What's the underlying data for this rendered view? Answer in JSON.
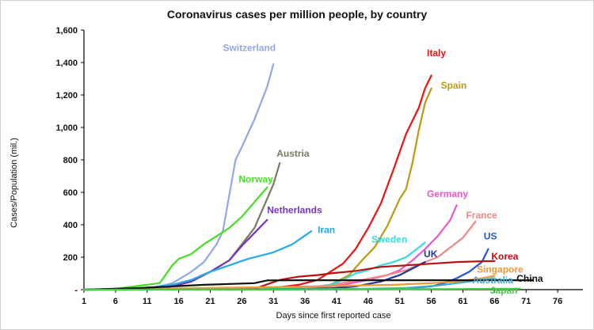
{
  "chart_data": {
    "type": "line",
    "title": "Coronavirus cases per million people, by country",
    "xlabel": "Days since first reported case",
    "ylabel": "Cases/Population (mil.)",
    "xlim": [
      1,
      80
    ],
    "ylim": [
      0,
      1600
    ],
    "x_ticks": [
      1,
      6,
      11,
      16,
      21,
      26,
      31,
      36,
      41,
      46,
      51,
      56,
      61,
      66,
      71,
      76
    ],
    "y_ticks": [
      0,
      200,
      400,
      600,
      800,
      1000,
      1200,
      1400,
      1600
    ],
    "y_tick_labels": [
      "-",
      "200",
      "400",
      "600",
      "800",
      "1,000",
      "1,200",
      "1,400",
      "1,600"
    ],
    "grid": false,
    "legend": "inline labels",
    "series": [
      {
        "name": "Switzerland",
        "color": "#8fa8ec",
        "points": [
          [
            1,
            0
          ],
          [
            5,
            3
          ],
          [
            9,
            8
          ],
          [
            12,
            12
          ],
          [
            15,
            40
          ],
          [
            18,
            110
          ],
          [
            20,
            170
          ],
          [
            22,
            280
          ],
          [
            23,
            360
          ],
          [
            25,
            800
          ],
          [
            26,
            880
          ],
          [
            28,
            1050
          ],
          [
            30,
            1250
          ],
          [
            31,
            1390
          ]
        ]
      },
      {
        "name": "Austria",
        "color": "#7a7a62",
        "points": [
          [
            1,
            0
          ],
          [
            8,
            5
          ],
          [
            12,
            10
          ],
          [
            15,
            30
          ],
          [
            18,
            60
          ],
          [
            21,
            110
          ],
          [
            24,
            180
          ],
          [
            26,
            280
          ],
          [
            28,
            380
          ],
          [
            30,
            560
          ],
          [
            31,
            650
          ],
          [
            32,
            780
          ]
        ]
      },
      {
        "name": "Norway",
        "color": "#44dd22",
        "points": [
          [
            1,
            0
          ],
          [
            6,
            5
          ],
          [
            9,
            20
          ],
          [
            13,
            40
          ],
          [
            15,
            150
          ],
          [
            16,
            190
          ],
          [
            18,
            220
          ],
          [
            20,
            280
          ],
          [
            22,
            330
          ],
          [
            24,
            380
          ],
          [
            26,
            450
          ],
          [
            28,
            540
          ],
          [
            30,
            630
          ]
        ]
      },
      {
        "name": "Netherlands",
        "color": "#7733bb",
        "points": [
          [
            1,
            0
          ],
          [
            8,
            3
          ],
          [
            12,
            8
          ],
          [
            15,
            20
          ],
          [
            18,
            50
          ],
          [
            21,
            110
          ],
          [
            24,
            180
          ],
          [
            26,
            270
          ],
          [
            28,
            350
          ],
          [
            30,
            430
          ]
        ]
      },
      {
        "name": "Iran",
        "color": "#22aaee",
        "points": [
          [
            1,
            0
          ],
          [
            8,
            5
          ],
          [
            12,
            15
          ],
          [
            15,
            30
          ],
          [
            18,
            60
          ],
          [
            21,
            110
          ],
          [
            24,
            150
          ],
          [
            27,
            190
          ],
          [
            31,
            230
          ],
          [
            34,
            280
          ],
          [
            37,
            360
          ]
        ]
      },
      {
        "name": "Italy",
        "color": "#ee1111",
        "points": [
          [
            1,
            0
          ],
          [
            20,
            2
          ],
          [
            28,
            6
          ],
          [
            32,
            15
          ],
          [
            35,
            30
          ],
          [
            38,
            60
          ],
          [
            40,
            110
          ],
          [
            42,
            160
          ],
          [
            44,
            250
          ],
          [
            46,
            380
          ],
          [
            48,
            530
          ],
          [
            50,
            740
          ],
          [
            52,
            960
          ],
          [
            54,
            1120
          ],
          [
            55,
            1240
          ],
          [
            56,
            1320
          ]
        ]
      },
      {
        "name": "Spain",
        "color": "#bb9911",
        "points": [
          [
            1,
            0
          ],
          [
            30,
            2
          ],
          [
            35,
            5
          ],
          [
            38,
            10
          ],
          [
            40,
            30
          ],
          [
            43,
            90
          ],
          [
            45,
            180
          ],
          [
            47,
            260
          ],
          [
            49,
            390
          ],
          [
            51,
            560
          ],
          [
            52,
            620
          ],
          [
            53,
            780
          ],
          [
            54,
            980
          ],
          [
            55,
            1150
          ],
          [
            56,
            1240
          ]
        ]
      },
      {
        "name": "Germany",
        "color": "#ee55cc",
        "points": [
          [
            1,
            0
          ],
          [
            25,
            2
          ],
          [
            32,
            4
          ],
          [
            38,
            10
          ],
          [
            42,
            30
          ],
          [
            46,
            60
          ],
          [
            49,
            90
          ],
          [
            51,
            120
          ],
          [
            53,
            180
          ],
          [
            55,
            250
          ],
          [
            57,
            330
          ],
          [
            59,
            430
          ],
          [
            60,
            520
          ]
        ]
      },
      {
        "name": "France",
        "color": "#f08888",
        "points": [
          [
            1,
            0
          ],
          [
            20,
            2
          ],
          [
            30,
            5
          ],
          [
            36,
            10
          ],
          [
            40,
            30
          ],
          [
            45,
            60
          ],
          [
            49,
            90
          ],
          [
            52,
            120
          ],
          [
            55,
            170
          ],
          [
            57,
            200
          ],
          [
            59,
            260
          ],
          [
            61,
            320
          ],
          [
            63,
            420
          ]
        ]
      },
      {
        "name": "Sweden",
        "color": "#33dddd",
        "points": [
          [
            1,
            0
          ],
          [
            20,
            2
          ],
          [
            30,
            4
          ],
          [
            36,
            8
          ],
          [
            40,
            30
          ],
          [
            42,
            60
          ],
          [
            44,
            100
          ],
          [
            46,
            120
          ],
          [
            48,
            150
          ],
          [
            50,
            170
          ],
          [
            52,
            200
          ],
          [
            54,
            260
          ],
          [
            55,
            290
          ]
        ]
      },
      {
        "name": "UK",
        "color": "#223399",
        "points": [
          [
            1,
            0
          ],
          [
            28,
            2
          ],
          [
            36,
            4
          ],
          [
            40,
            8
          ],
          [
            44,
            20
          ],
          [
            48,
            50
          ],
          [
            51,
            90
          ],
          [
            53,
            130
          ],
          [
            55,
            170
          ]
        ]
      },
      {
        "name": "US",
        "color": "#2255dd",
        "points": [
          [
            1,
            0
          ],
          [
            35,
            2
          ],
          [
            45,
            4
          ],
          [
            52,
            8
          ],
          [
            56,
            20
          ],
          [
            58,
            40
          ],
          [
            60,
            70
          ],
          [
            62,
            110
          ],
          [
            64,
            170
          ],
          [
            65,
            250
          ]
        ]
      },
      {
        "name": "Korea",
        "color": "#bb1111",
        "points": [
          [
            1,
            0
          ],
          [
            28,
            5
          ],
          [
            32,
            60
          ],
          [
            35,
            80
          ],
          [
            38,
            90
          ],
          [
            40,
            100
          ],
          [
            44,
            115
          ],
          [
            48,
            140
          ],
          [
            52,
            150
          ],
          [
            56,
            160
          ],
          [
            60,
            170
          ],
          [
            64,
            175
          ],
          [
            66,
            176
          ]
        ]
      },
      {
        "name": "Singapore",
        "color": "#ee9933",
        "points": [
          [
            1,
            0
          ],
          [
            10,
            5
          ],
          [
            20,
            10
          ],
          [
            30,
            15
          ],
          [
            40,
            22
          ],
          [
            50,
            30
          ],
          [
            56,
            40
          ],
          [
            60,
            50
          ],
          [
            64,
            70
          ],
          [
            66,
            85
          ]
        ]
      },
      {
        "name": "Australia",
        "color": "#44aacc",
        "points": [
          [
            1,
            0
          ],
          [
            30,
            2
          ],
          [
            45,
            5
          ],
          [
            52,
            10
          ],
          [
            57,
            25
          ],
          [
            61,
            45
          ],
          [
            64,
            60
          ],
          [
            66,
            70
          ]
        ]
      },
      {
        "name": "China",
        "color": "#111111",
        "points": [
          [
            1,
            0
          ],
          [
            10,
            10
          ],
          [
            20,
            30
          ],
          [
            28,
            40
          ],
          [
            30,
            57
          ],
          [
            35,
            58
          ],
          [
            45,
            58
          ],
          [
            55,
            58
          ],
          [
            65,
            58
          ],
          [
            72,
            58
          ]
        ]
      },
      {
        "name": "Japan",
        "color": "#44cc44",
        "points": [
          [
            1,
            0
          ],
          [
            20,
            1
          ],
          [
            40,
            2
          ],
          [
            60,
            4
          ],
          [
            70,
            6
          ]
        ]
      }
    ],
    "labels": [
      {
        "series": "Switzerland",
        "text": "Switzerland",
        "x": 23,
        "y": 1470
      },
      {
        "series": "Austria",
        "text": "Austria",
        "x": 31.5,
        "y": 820
      },
      {
        "series": "Norway",
        "text": "Norway",
        "x": 25.5,
        "y": 660
      },
      {
        "series": "Netherlands",
        "text": "Netherlands",
        "x": 30,
        "y": 470
      },
      {
        "series": "Iran",
        "text": "Iran",
        "x": 38,
        "y": 350
      },
      {
        "series": "Italy",
        "text": "Italy",
        "x": 55.3,
        "y": 1440
      },
      {
        "series": "Spain",
        "text": "Spain",
        "x": 57.5,
        "y": 1240
      },
      {
        "series": "Germany",
        "text": "Germany",
        "x": 55.3,
        "y": 570
      },
      {
        "series": "France",
        "text": "France",
        "x": 61.5,
        "y": 440
      },
      {
        "series": "Sweden",
        "text": "Sweden",
        "x": 46.5,
        "y": 290
      },
      {
        "series": "UK",
        "text": "UK",
        "x": 54.8,
        "y": 200
      },
      {
        "series": "US",
        "text": "US",
        "x": 64.3,
        "y": 310
      },
      {
        "series": "Korea",
        "text": "Korea",
        "x": 65.5,
        "y": 185
      },
      {
        "series": "Singapore",
        "text": "Singapore",
        "x": 63.2,
        "y": 105
      },
      {
        "series": "Australia",
        "text": "Australia",
        "x": 62.5,
        "y": 40
      },
      {
        "series": "China",
        "text": "China",
        "x": 69.5,
        "y": 50
      },
      {
        "series": "Japan",
        "text": "Japan",
        "x": 65.3,
        "y": -25
      }
    ]
  }
}
